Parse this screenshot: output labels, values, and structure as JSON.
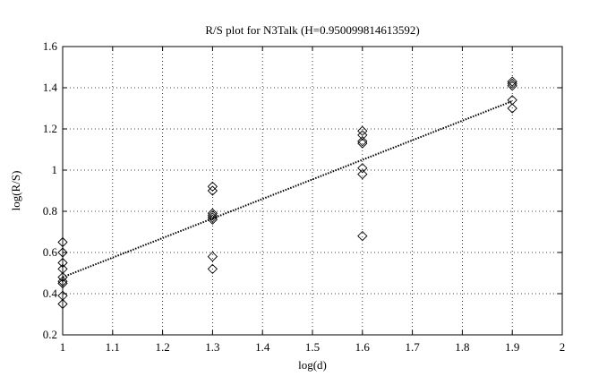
{
  "chart_data": {
    "type": "scatter",
    "title": "R/S plot for N3Talk (H=0.950099814613592)",
    "x_label": "log(d)",
    "y_label": "log(R/S)",
    "xlim": [
      1,
      2
    ],
    "ylim": [
      0.2,
      1.6
    ],
    "xticks": [
      1,
      1.1,
      1.2,
      1.3,
      1.4,
      1.5,
      1.6,
      1.7,
      1.8,
      1.9,
      2
    ],
    "yticks": [
      0.2,
      0.4,
      0.6,
      0.8,
      1,
      1.2,
      1.4,
      1.6
    ],
    "grid": true,
    "series": [
      {
        "color": "#000000",
        "marker": "diamond",
        "x": [
          1,
          1,
          1,
          1,
          1,
          1,
          1,
          1,
          1,
          1.3,
          1.3,
          1.3,
          1.3,
          1.3,
          1.3,
          1.3,
          1.3,
          1.6,
          1.6,
          1.6,
          1.6,
          1.6,
          1.6,
          1.6,
          1.9,
          1.9,
          1.9,
          1.9,
          1.9
        ],
        "values": [
          0.65,
          0.6,
          0.55,
          0.52,
          0.48,
          0.46,
          0.45,
          0.39,
          0.35,
          0.92,
          0.9,
          0.79,
          0.78,
          0.77,
          0.76,
          0.58,
          0.52,
          1.19,
          1.17,
          1.14,
          1.13,
          1.01,
          0.98,
          0.68,
          1.43,
          1.42,
          1.41,
          1.34,
          1.3
        ]
      }
    ],
    "fit": {
      "color": "#000000",
      "x": [
        1,
        1.9
      ],
      "values": [
        0.48,
        1.335
      ]
    }
  }
}
